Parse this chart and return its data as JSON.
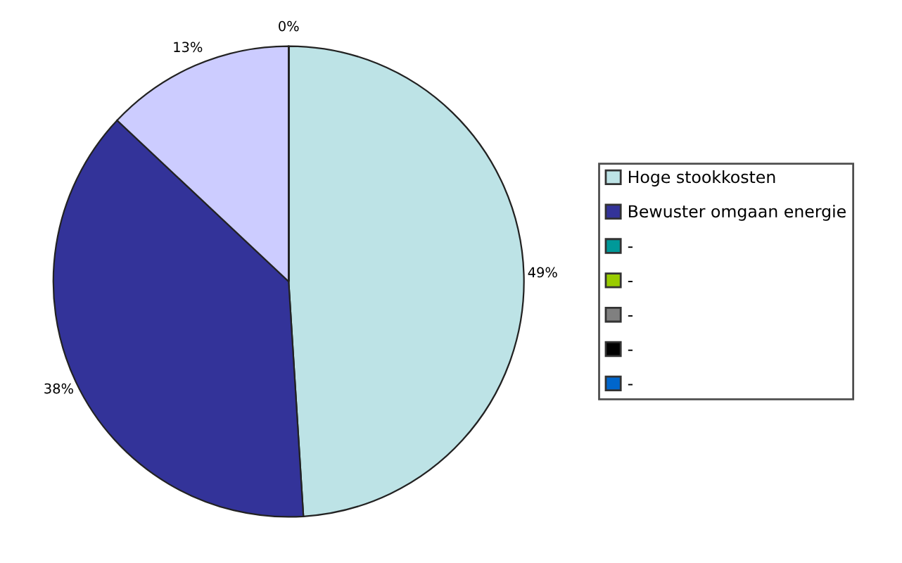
{
  "chart_data": {
    "type": "pie",
    "categories": [
      "Hoge stookkosten",
      "Bewuster omgaan energie",
      null,
      "-",
      "-",
      "-",
      "-",
      "-"
    ],
    "values": [
      49,
      38,
      13,
      0,
      0,
      0,
      0,
      0
    ],
    "colors": [
      "#bde3e6",
      "#333399",
      "#ccccff",
      "#009999",
      "#99cc00",
      "#808080",
      "#000000",
      "#0066cc"
    ],
    "value_labels": [
      "49%",
      "38%",
      "13%",
      "0%",
      null,
      null,
      null,
      null
    ],
    "legend": "right"
  }
}
